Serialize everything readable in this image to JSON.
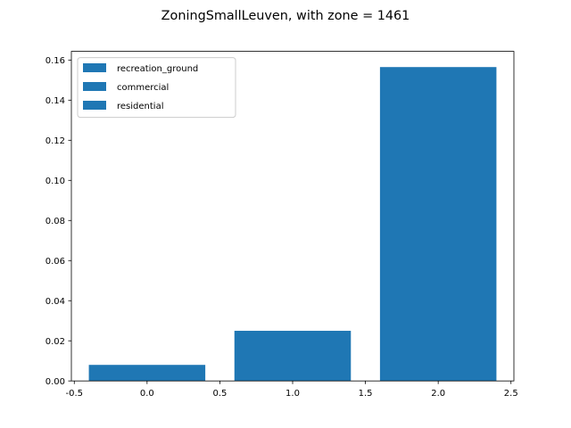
{
  "chart_data": {
    "type": "bar",
    "title": "ZoningSmallLeuven, with zone = 1461",
    "xlabel": "",
    "ylabel": "",
    "x": [
      0.0,
      1.0,
      2.0
    ],
    "bar_width": 0.8,
    "series": [
      {
        "name": "recreation_ground",
        "x": 0.0,
        "value": 0.008
      },
      {
        "name": "commercial",
        "x": 1.0,
        "value": 0.025
      },
      {
        "name": "residential",
        "x": 2.0,
        "value": 0.1565
      }
    ],
    "xlim": [
      -0.52,
      2.52
    ],
    "ylim": [
      0.0,
      0.16433
    ],
    "xticks": [
      "-0.5",
      "0.0",
      "0.5",
      "1.0",
      "1.5",
      "2.0",
      "2.5"
    ],
    "yticks": [
      "0.00",
      "0.02",
      "0.04",
      "0.06",
      "0.08",
      "0.10",
      "0.12",
      "0.14",
      "0.16"
    ],
    "grid": false,
    "legend_position": "top-left",
    "bar_color": "#1f77b4"
  }
}
